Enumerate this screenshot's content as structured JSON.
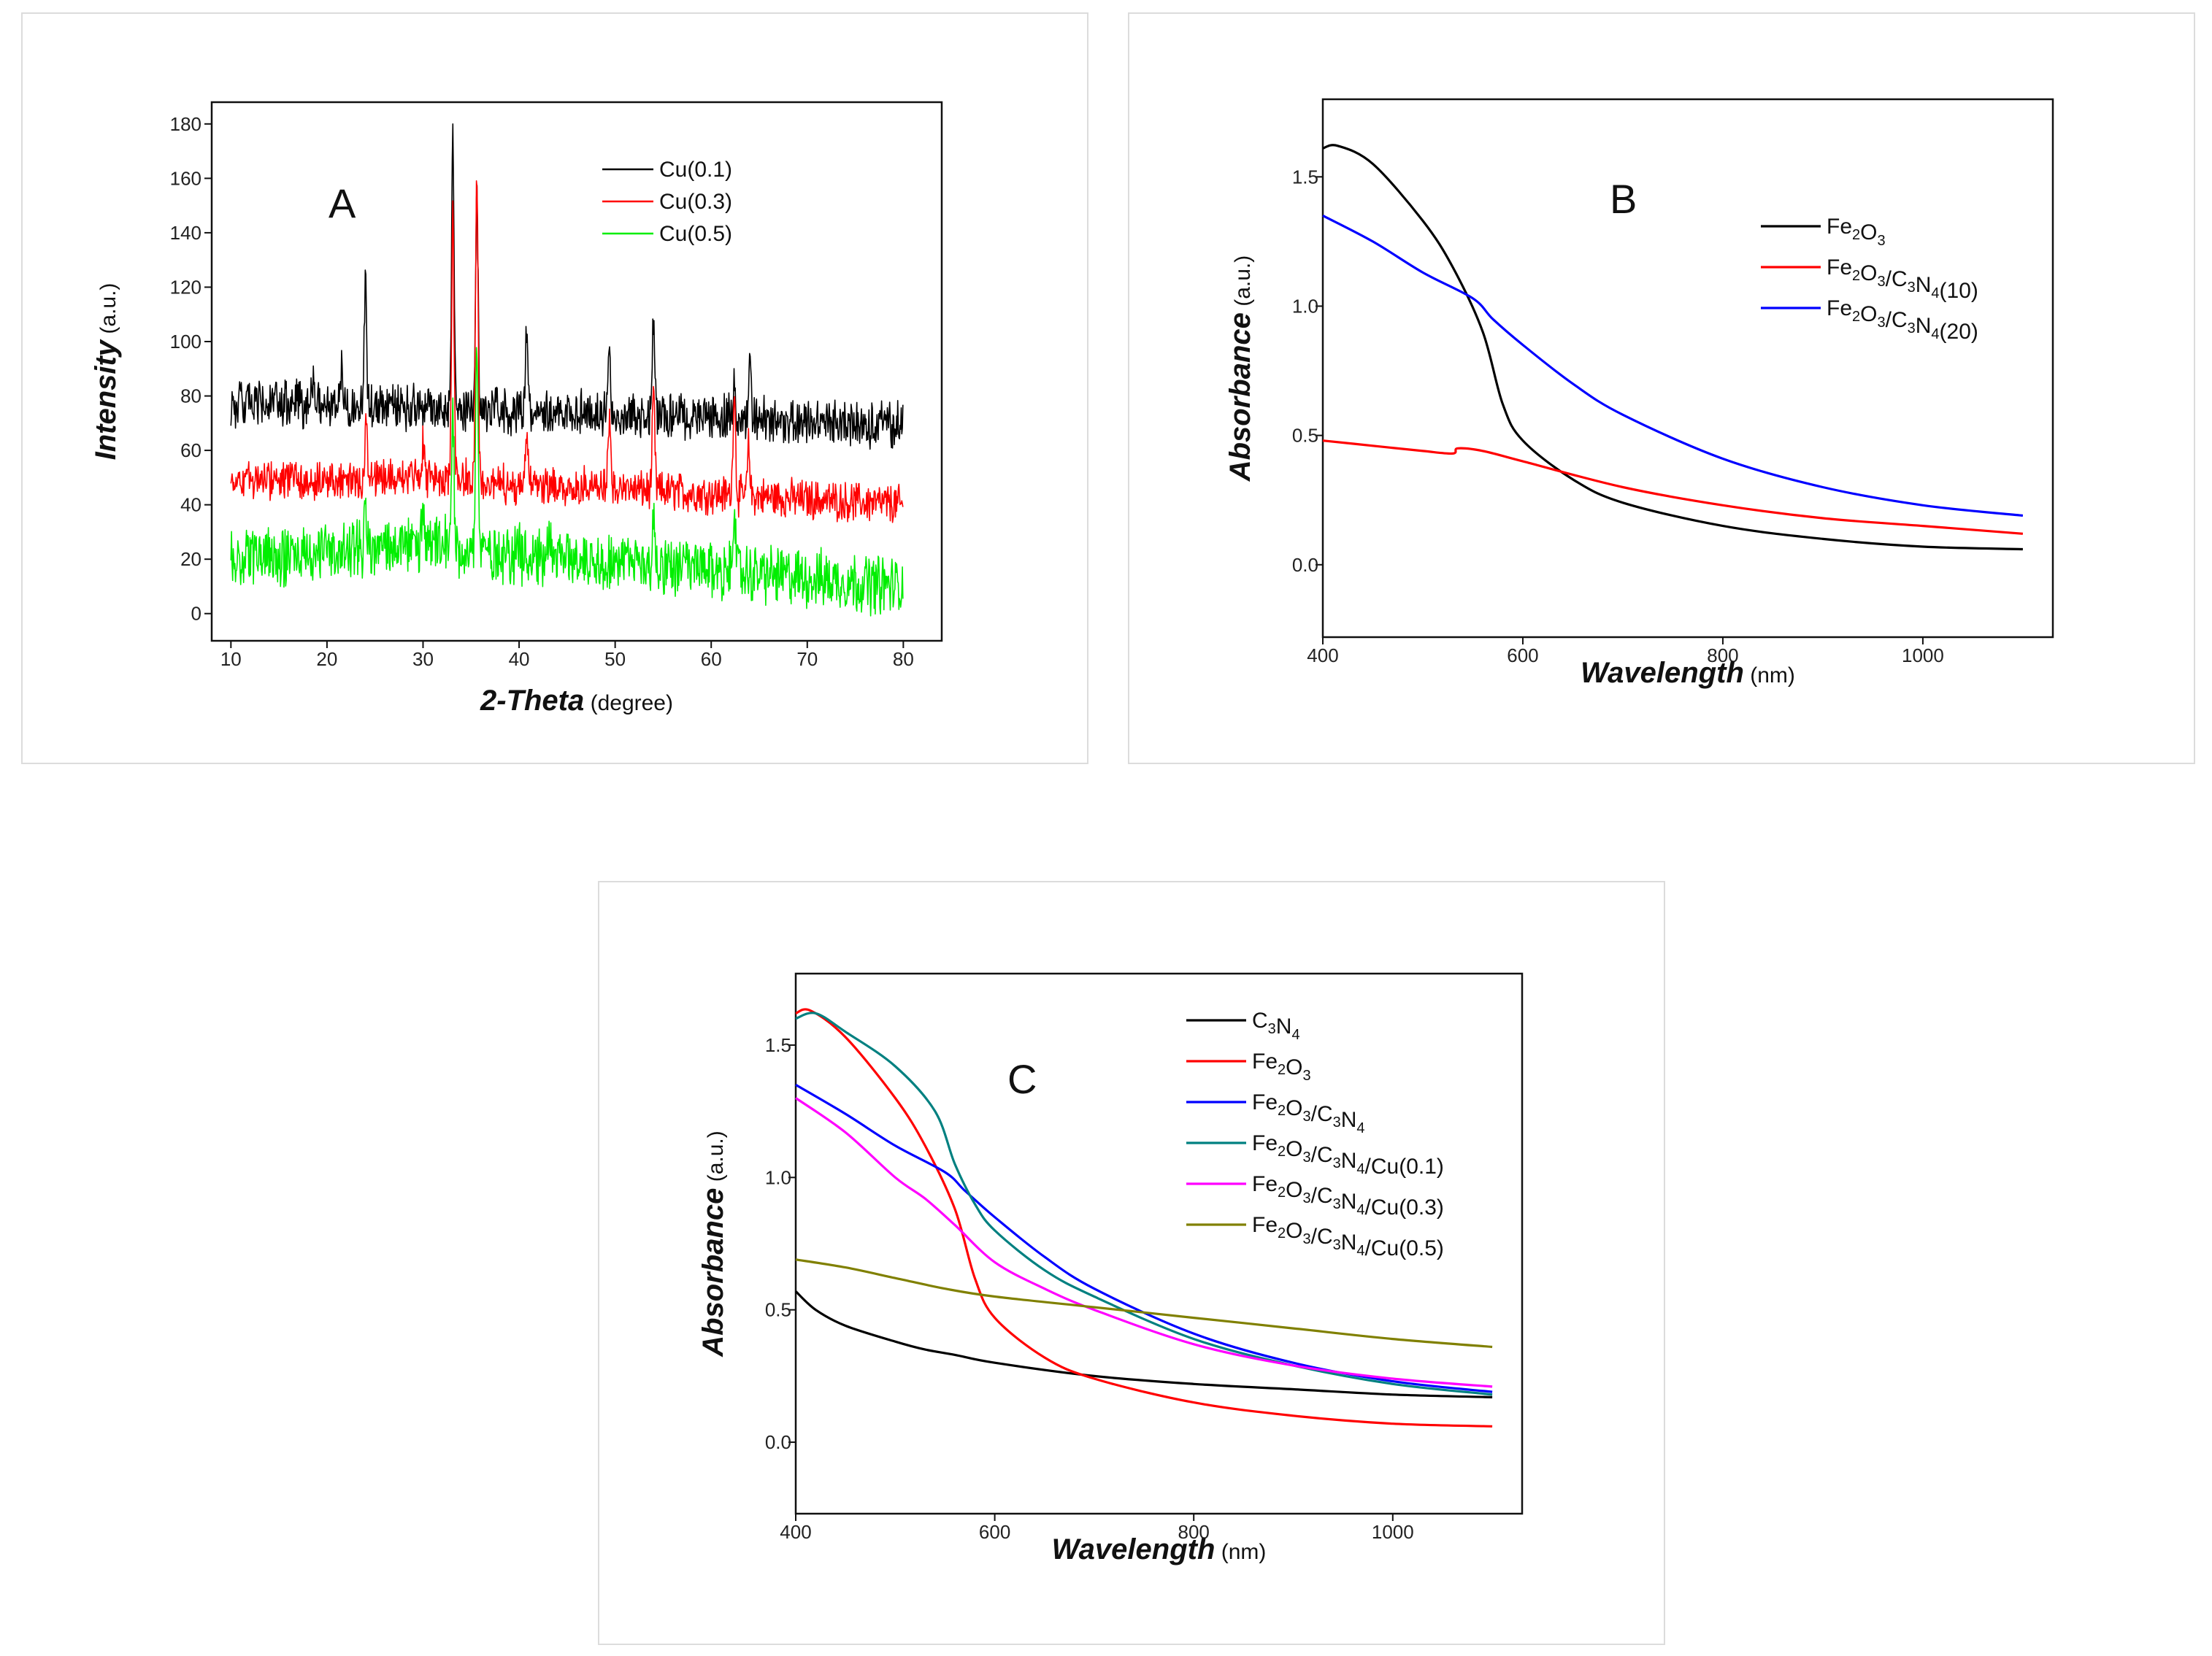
{
  "charts": [
    {
      "id": "A",
      "type": "line",
      "panel_label": "A",
      "xlabel": "2-Theta",
      "xlabel_unit": "(degree)",
      "ylabel": "Intensity",
      "ylabel_unit": "(a.u.)",
      "xlim": [
        8,
        84
      ],
      "ylim": [
        -10,
        188
      ],
      "xticks": [
        10,
        20,
        30,
        40,
        50,
        60,
        70,
        80
      ],
      "yticks": [
        0,
        20,
        40,
        60,
        80,
        100,
        120,
        140,
        160,
        180
      ],
      "legend": [
        "Cu(0.1)",
        "Cu(0.3)",
        "Cu(0.5)"
      ],
      "colors": [
        "#000000",
        "#ff0000",
        "#00ee00"
      ],
      "noise": [
        7,
        6,
        9
      ],
      "series": [
        {
          "name": "Cu(0.1)",
          "baseline": [
            [
              10,
              77
            ],
            [
              30,
              76
            ],
            [
              80,
              69
            ]
          ],
          "peaks": [
            [
              18.5,
              12
            ],
            [
              21.5,
              15
            ],
            [
              24.0,
              45
            ],
            [
              33.1,
              100
            ],
            [
              35.6,
              78
            ],
            [
              40.8,
              30
            ],
            [
              49.4,
              22
            ],
            [
              54.0,
              35
            ],
            [
              62.4,
              12
            ],
            [
              64.0,
              22
            ]
          ]
        },
        {
          "name": "Cu(0.3)",
          "baseline": [
            [
              10,
              49
            ],
            [
              30,
              50
            ],
            [
              80,
              40
            ]
          ],
          "peaks": [
            [
              24.1,
              22
            ],
            [
              30.0,
              12
            ],
            [
              33.1,
              95
            ],
            [
              35.6,
              115
            ],
            [
              40.8,
              20
            ],
            [
              49.4,
              25
            ],
            [
              54.0,
              35
            ],
            [
              62.4,
              40
            ],
            [
              63.9,
              18
            ]
          ]
        },
        {
          "name": "Cu(0.5)",
          "baseline": [
            [
              10,
              20
            ],
            [
              30,
              25
            ],
            [
              80,
              10
            ]
          ],
          "peaks": [
            [
              24.0,
              15
            ],
            [
              30.0,
              10
            ],
            [
              33.1,
              50
            ],
            [
              35.6,
              75
            ],
            [
              43.2,
              12
            ],
            [
              54.0,
              18
            ],
            [
              62.4,
              28
            ]
          ]
        }
      ]
    },
    {
      "id": "B",
      "type": "line",
      "panel_label": "B",
      "xlabel": "Wavelength",
      "xlabel_unit": "(nm)",
      "ylabel": "Absorbance",
      "ylabel_unit": "(a.u.)",
      "xlim": [
        400,
        1130
      ],
      "ylim": [
        -0.28,
        1.8
      ],
      "xticks": [
        400,
        600,
        800,
        1000
      ],
      "yticks": [
        0.0,
        0.5,
        1.0,
        1.5
      ],
      "yticklabels": [
        "0.0",
        "0.5",
        "1.0",
        "1.5"
      ],
      "legend": [
        {
          "base": "Fe",
          "s1": "2",
          "mid": "O",
          "s2": "3",
          "rest": ""
        },
        {
          "base": "Fe",
          "s1": "2",
          "mid": "O",
          "s2": "3",
          "rest": "/C",
          "s3": "3",
          "mid2": "N",
          "s4": "4",
          "tail": "(10)"
        },
        {
          "base": "Fe",
          "s1": "2",
          "mid": "O",
          "s2": "3",
          "rest": "/C",
          "s3": "3",
          "mid2": "N",
          "s4": "4",
          "tail": "(20)"
        }
      ],
      "colors": [
        "#000000",
        "#ff0000",
        "#0000ff"
      ],
      "series": [
        {
          "name": "Fe2O3",
          "x": [
            400,
            415,
            450,
            500,
            530,
            560,
            580,
            600,
            650,
            700,
            800,
            900,
            1000,
            1100
          ],
          "y": [
            1.61,
            1.62,
            1.55,
            1.33,
            1.15,
            0.9,
            0.62,
            0.48,
            0.33,
            0.24,
            0.15,
            0.1,
            0.07,
            0.06
          ]
        },
        {
          "name": "Fe2O3/C3N4(10)",
          "x": [
            400,
            450,
            500,
            530,
            535,
            560,
            600,
            700,
            800,
            900,
            1000,
            1100
          ],
          "y": [
            0.48,
            0.46,
            0.44,
            0.43,
            0.45,
            0.44,
            0.4,
            0.3,
            0.23,
            0.18,
            0.15,
            0.12
          ]
        },
        {
          "name": "Fe2O3/C3N4(20)",
          "x": [
            400,
            450,
            500,
            550,
            570,
            600,
            650,
            700,
            800,
            900,
            1000,
            1100
          ],
          "y": [
            1.35,
            1.25,
            1.13,
            1.03,
            0.95,
            0.85,
            0.7,
            0.58,
            0.41,
            0.3,
            0.23,
            0.19
          ]
        }
      ]
    },
    {
      "id": "C",
      "type": "line",
      "panel_label": "C",
      "xlabel": "Wavelength",
      "xlabel_unit": "(nm)",
      "ylabel": "Absorbance",
      "ylabel_unit": "(a.u.)",
      "xlim": [
        400,
        1130
      ],
      "ylim": [
        -0.27,
        1.77
      ],
      "xticks": [
        400,
        600,
        800,
        1000
      ],
      "yticks": [
        0.0,
        0.5,
        1.0,
        1.5
      ],
      "yticklabels": [
        "0.0",
        "0.5",
        "1.0",
        "1.5"
      ],
      "legend": [
        {
          "base": "C",
          "s1": "3",
          "mid": "N",
          "s2": "4",
          "rest": ""
        },
        {
          "base": "Fe",
          "s1": "2",
          "mid": "O",
          "s2": "3",
          "rest": ""
        },
        {
          "base": "Fe",
          "s1": "2",
          "mid": "O",
          "s2": "3",
          "rest": "/C",
          "s3": "3",
          "mid2": "N",
          "s4": "4",
          "tail": ""
        },
        {
          "base": "Fe",
          "s1": "2",
          "mid": "O",
          "s2": "3",
          "rest": "/C",
          "s3": "3",
          "mid2": "N",
          "s4": "4",
          "tail": "/Cu(0.1)"
        },
        {
          "base": "Fe",
          "s1": "2",
          "mid": "O",
          "s2": "3",
          "rest": "/C",
          "s3": "3",
          "mid2": "N",
          "s4": "4",
          "tail": "/Cu(0.3)"
        },
        {
          "base": "Fe",
          "s1": "2",
          "mid": "O",
          "s2": "3",
          "rest": "/C",
          "s3": "3",
          "mid2": "N",
          "s4": "4",
          "tail": "/Cu(0.5)"
        }
      ],
      "colors": [
        "#000000",
        "#ff0000",
        "#0000ff",
        "#008080",
        "#ff00ff",
        "#808000"
      ],
      "series": [
        {
          "name": "C3N4",
          "x": [
            400,
            420,
            450,
            500,
            530,
            560,
            600,
            700,
            800,
            900,
            1000,
            1100
          ],
          "y": [
            0.57,
            0.5,
            0.44,
            0.38,
            0.35,
            0.33,
            0.3,
            0.25,
            0.22,
            0.2,
            0.18,
            0.17
          ]
        },
        {
          "name": "Fe2O3",
          "x": [
            400,
            415,
            450,
            500,
            530,
            560,
            580,
            600,
            650,
            700,
            800,
            900,
            1000,
            1100
          ],
          "y": [
            1.62,
            1.63,
            1.53,
            1.3,
            1.12,
            0.88,
            0.62,
            0.47,
            0.32,
            0.24,
            0.15,
            0.1,
            0.07,
            0.06
          ]
        },
        {
          "name": "Fe2O3/C3N4",
          "x": [
            400,
            450,
            500,
            550,
            570,
            600,
            650,
            700,
            800,
            900,
            1000,
            1100
          ],
          "y": [
            1.35,
            1.24,
            1.12,
            1.02,
            0.95,
            0.85,
            0.7,
            0.58,
            0.41,
            0.3,
            0.23,
            0.19
          ]
        },
        {
          "name": "Fe2O3/C3N4/Cu(0.1)",
          "x": [
            400,
            420,
            450,
            500,
            540,
            560,
            580,
            600,
            650,
            700,
            800,
            900,
            1000,
            1100
          ],
          "y": [
            1.6,
            1.62,
            1.55,
            1.42,
            1.25,
            1.05,
            0.9,
            0.8,
            0.65,
            0.55,
            0.39,
            0.29,
            0.22,
            0.18
          ]
        },
        {
          "name": "Fe2O3/C3N4/Cu(0.3)",
          "x": [
            400,
            450,
            500,
            530,
            560,
            600,
            650,
            700,
            800,
            900,
            1000,
            1100
          ],
          "y": [
            1.3,
            1.17,
            1.0,
            0.92,
            0.82,
            0.68,
            0.58,
            0.5,
            0.37,
            0.29,
            0.24,
            0.21
          ]
        },
        {
          "name": "Fe2O3/C3N4/Cu(0.5)",
          "x": [
            400,
            450,
            500,
            550,
            600,
            700,
            800,
            900,
            1000,
            1100
          ],
          "y": [
            0.69,
            0.66,
            0.62,
            0.58,
            0.55,
            0.51,
            0.47,
            0.43,
            0.39,
            0.36
          ]
        }
      ]
    }
  ]
}
